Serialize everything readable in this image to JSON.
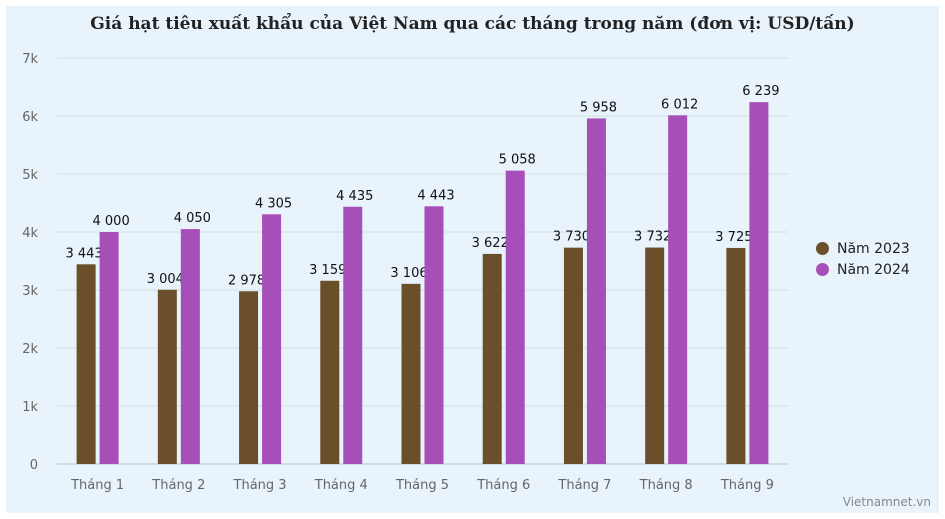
{
  "chart_data": {
    "type": "bar",
    "title": "Giá hạt tiêu xuất khẩu của Việt Nam qua các tháng trong năm (đơn vị: USD/tấn)",
    "categories": [
      "Tháng 1",
      "Tháng 2",
      "Tháng 3",
      "Tháng 4",
      "Tháng 5",
      "Tháng 6",
      "Tháng 7",
      "Tháng 8",
      "Tháng 9"
    ],
    "series": [
      {
        "name": "Năm 2023",
        "color": "#6b4f2a",
        "values": [
          3443,
          3004,
          2978,
          3159,
          3106,
          3622,
          3730,
          3732,
          3725
        ],
        "labels": [
          "3 443",
          "3 004",
          "2 978",
          "3 159",
          "3 106",
          "3 622",
          "3 730",
          "3 732",
          "3 725"
        ]
      },
      {
        "name": "Năm 2024",
        "color": "#a64fb8",
        "values": [
          4000,
          4050,
          4305,
          4435,
          4443,
          5058,
          5958,
          6012,
          6239
        ],
        "labels": [
          "4 000",
          "4 050",
          "4 305",
          "4 435",
          "4 443",
          "5 058",
          "5 958",
          "6 012",
          "6 239"
        ]
      }
    ],
    "ylim": [
      0,
      7000
    ],
    "yticks": [
      0,
      1000,
      2000,
      3000,
      4000,
      5000,
      6000,
      7000
    ],
    "ytick_labels": [
      "0",
      "1k",
      "2k",
      "3k",
      "4k",
      "5k",
      "6k",
      "7k"
    ],
    "xlabel": "",
    "ylabel": "",
    "grid": true,
    "legend_position": "right"
  },
  "source": "Vietnamnet.vn"
}
